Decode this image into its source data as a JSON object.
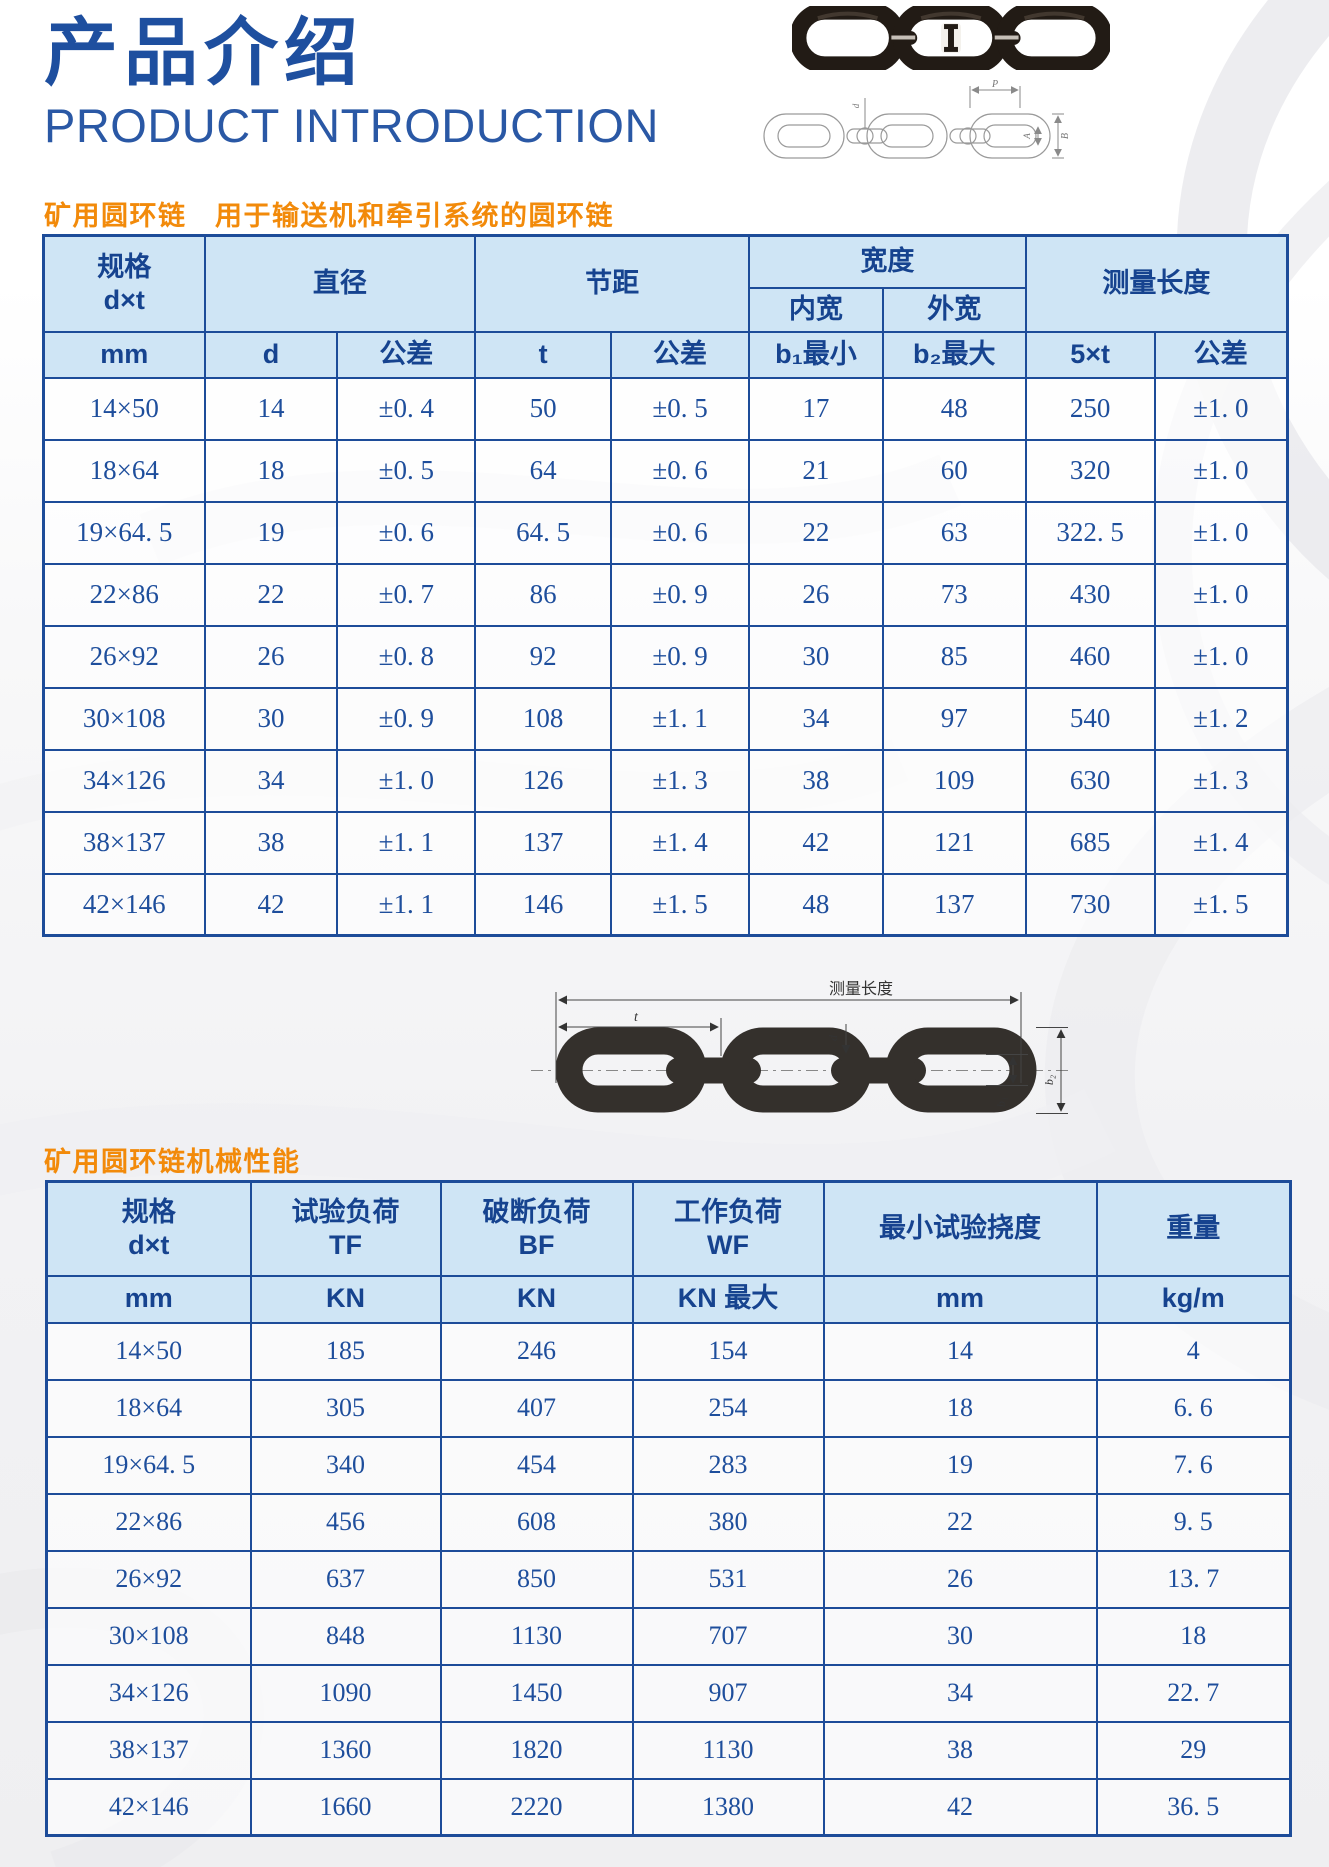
{
  "header": {
    "title_zh": "产品介绍",
    "title_en": "PRODUCT INTRODUCTION"
  },
  "sections": {
    "spec_heading": "矿用圆环链　用于输送机和牵引系统的圆环链",
    "mech_heading": "矿用圆环链机械性能"
  },
  "table1": {
    "h_spec_l1": "规格",
    "h_spec_l2": "d×t",
    "h_diameter": "直径",
    "h_pitch": "节距",
    "h_width": "宽度",
    "h_inner": "内宽",
    "h_outer": "外宽",
    "h_measure": "测量长度",
    "u_mm": "mm",
    "u_d": "d",
    "u_tol_d": "公差",
    "u_t": "t",
    "u_tol_t": "公差",
    "u_b1": "b₁最小",
    "u_b2": "b₂最大",
    "u_5t": "5×t",
    "u_tol_len": "公差",
    "rows": [
      [
        "14×50",
        "14",
        "±0. 4",
        "50",
        "±0. 5",
        "17",
        "48",
        "250",
        "±1. 0"
      ],
      [
        "18×64",
        "18",
        "±0. 5",
        "64",
        "±0. 6",
        "21",
        "60",
        "320",
        "±1. 0"
      ],
      [
        "19×64. 5",
        "19",
        "±0. 6",
        "64. 5",
        "±0. 6",
        "22",
        "63",
        "322. 5",
        "±1. 0"
      ],
      [
        "22×86",
        "22",
        "±0. 7",
        "86",
        "±0. 9",
        "26",
        "73",
        "430",
        "±1. 0"
      ],
      [
        "26×92",
        "26",
        "±0. 8",
        "92",
        "±0. 9",
        "30",
        "85",
        "460",
        "±1. 0"
      ],
      [
        "30×108",
        "30",
        "±0. 9",
        "108",
        "±1. 1",
        "34",
        "97",
        "540",
        "±1. 2"
      ],
      [
        "34×126",
        "34",
        "±1. 0",
        "126",
        "±1. 3",
        "38",
        "109",
        "630",
        "±1. 3"
      ],
      [
        "38×137",
        "38",
        "±1. 1",
        "137",
        "±1. 4",
        "42",
        "121",
        "685",
        "±1. 4"
      ],
      [
        "42×146",
        "42",
        "±1. 1",
        "146",
        "±1. 5",
        "48",
        "137",
        "730",
        "±1. 5"
      ]
    ]
  },
  "table2": {
    "h_spec_l1": "规格",
    "h_spec_l2": "d×t",
    "h_tf_l1": "试验负荷",
    "h_tf_l2": "TF",
    "h_bf_l1": "破断负荷",
    "h_bf_l2": "BF",
    "h_wf_l1": "工作负荷",
    "h_wf_l2": "WF",
    "h_deflect": "最小试验挠度",
    "h_weight": "重量",
    "u_mm": "mm",
    "u_kn1": "KN",
    "u_kn2": "KN",
    "u_kn_max": "KN 最大",
    "u_mm2": "mm",
    "u_kgm": "kg/m",
    "rows": [
      [
        "14×50",
        "185",
        "246",
        "154",
        "14",
        "4"
      ],
      [
        "18×64",
        "305",
        "407",
        "254",
        "18",
        "6. 6"
      ],
      [
        "19×64. 5",
        "340",
        "454",
        "283",
        "19",
        "7. 6"
      ],
      [
        "22×86",
        "456",
        "608",
        "380",
        "22",
        "9. 5"
      ],
      [
        "26×92",
        "637",
        "850",
        "531",
        "26",
        "13. 7"
      ],
      [
        "30×108",
        "848",
        "1130",
        "707",
        "30",
        "18"
      ],
      [
        "34×126",
        "1090",
        "1450",
        "907",
        "34",
        "22. 7"
      ],
      [
        "38×137",
        "1360",
        "1820",
        "1130",
        "38",
        "29"
      ],
      [
        "42×146",
        "1660",
        "2220",
        "1380",
        "42",
        "36. 5"
      ]
    ]
  },
  "diagram_top": {
    "p": "P",
    "d": "d",
    "a": "A",
    "b": "B"
  },
  "diagram_mid": {
    "length": "测量长度",
    "t": "t",
    "d": "d",
    "b1": "b₁",
    "b2": "b₂"
  },
  "colors": {
    "title_blue": "#1e4f9f",
    "accent_orange": "#f28a0a",
    "table_border": "#1d4c99",
    "header_bg": "#cfe5f5",
    "text_blue": "#1e4e9c",
    "chain_dark": "#241d17"
  }
}
